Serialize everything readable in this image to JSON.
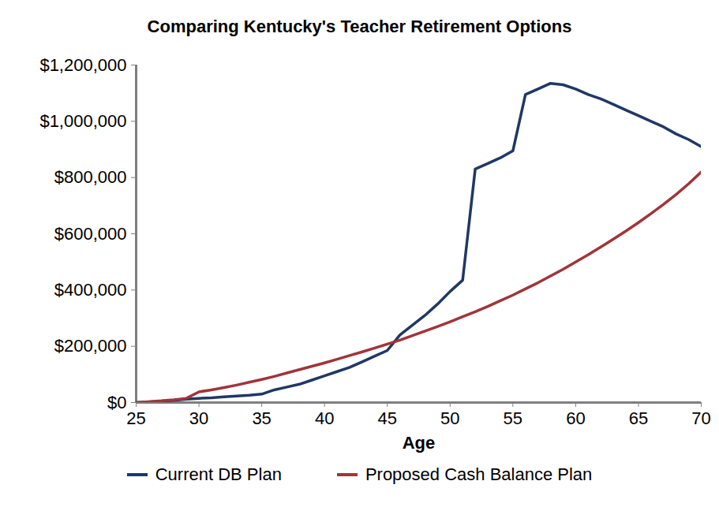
{
  "chart_data": {
    "type": "line",
    "title": "Comparing Kentucky's Teacher Retirement Options",
    "x_label": "Age",
    "x": [
      25,
      26,
      27,
      28,
      29,
      30,
      31,
      32,
      33,
      34,
      35,
      36,
      37,
      38,
      39,
      40,
      41,
      42,
      43,
      44,
      45,
      46,
      47,
      48,
      49,
      50,
      51,
      52,
      53,
      54,
      55,
      56,
      57,
      58,
      59,
      60,
      61,
      62,
      63,
      64,
      65,
      66,
      67,
      68,
      69,
      70
    ],
    "series": [
      {
        "name": "Current DB Plan",
        "color": "#203864",
        "values": [
          0,
          2000,
          5000,
          8000,
          12000,
          15000,
          17000,
          20000,
          23000,
          26000,
          30000,
          45000,
          55000,
          65000,
          80000,
          95000,
          110000,
          125000,
          145000,
          165000,
          185000,
          240000,
          275000,
          310000,
          350000,
          395000,
          435000,
          830000,
          850000,
          870000,
          895000,
          1095000,
          1115000,
          1135000,
          1130000,
          1115000,
          1095000,
          1080000,
          1060000,
          1040000,
          1020000,
          1000000,
          980000,
          955000,
          935000,
          910000
        ]
      },
      {
        "name": "Proposed Cash Balance Plan",
        "color": "#a0353a",
        "values": [
          0,
          3000,
          6000,
          10000,
          15000,
          38000,
          45000,
          53000,
          62000,
          72000,
          82000,
          93000,
          105000,
          117000,
          129000,
          141000,
          154000,
          167000,
          180000,
          194000,
          208000,
          222000,
          238000,
          254000,
          270000,
          287000,
          305000,
          323000,
          342000,
          362000,
          382000,
          404000,
          426000,
          450000,
          474000,
          500000,
          526000,
          553000,
          581000,
          610000,
          640000,
          672000,
          705000,
          740000,
          778000,
          820000
        ]
      }
    ],
    "xlim": [
      25,
      70
    ],
    "xticks": [
      25,
      30,
      35,
      40,
      45,
      50,
      55,
      60,
      65,
      70
    ],
    "ylim": [
      0,
      1200000
    ],
    "yticks": [
      {
        "value": 0,
        "label": "$0"
      },
      {
        "value": 200000,
        "label": "$200,000"
      },
      {
        "value": 400000,
        "label": "$400,000"
      },
      {
        "value": 600000,
        "label": "$600,000"
      },
      {
        "value": 800000,
        "label": "$800,000"
      },
      {
        "value": 1000000,
        "label": "$1,000,000"
      },
      {
        "value": 1200000,
        "label": "$1,200,000"
      }
    ],
    "grid": false,
    "legend": "bottom"
  }
}
